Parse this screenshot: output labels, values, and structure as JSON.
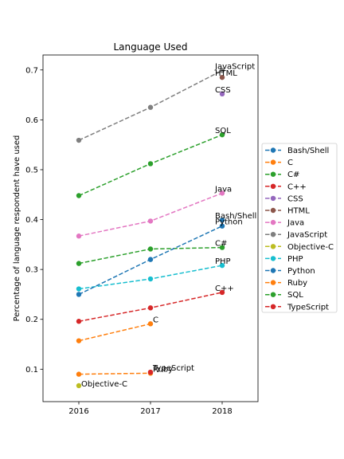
{
  "chart_data": {
    "type": "line",
    "title": "Language Used",
    "xlabel": "",
    "ylabel": "Percentage of language respondent have used",
    "x": [
      "2016",
      "2017",
      "2018"
    ],
    "xlim": [
      2015.5,
      2018.5
    ],
    "ylim": [
      0.035,
      0.73
    ],
    "yticks": [
      0.1,
      0.2,
      0.3,
      0.4,
      0.5,
      0.6,
      0.7
    ],
    "ytick_labels": [
      "0.1",
      "0.2",
      "0.3",
      "0.4",
      "0.5",
      "0.6",
      "0.7"
    ],
    "grid": false,
    "legend_position": "center right, outside axes",
    "line_style": "dashed",
    "series": [
      {
        "name": "Bash/Shell",
        "color": "#1f77b4",
        "values": [
          null,
          null,
          0.399
        ]
      },
      {
        "name": "C",
        "color": "#ff7f0e",
        "values": [
          0.157,
          0.191,
          null
        ]
      },
      {
        "name": "C#",
        "color": "#2ca02c",
        "values": [
          0.312,
          0.341,
          0.344
        ]
      },
      {
        "name": "C++",
        "color": "#d62728",
        "values": [
          0.196,
          0.223,
          0.254
        ]
      },
      {
        "name": "CSS",
        "color": "#9467bd",
        "values": [
          null,
          null,
          0.652
        ]
      },
      {
        "name": "HTML",
        "color": "#8c564b",
        "values": [
          null,
          null,
          0.685
        ]
      },
      {
        "name": "Java",
        "color": "#e377c2",
        "values": [
          0.367,
          0.397,
          0.453
        ]
      },
      {
        "name": "JavaScript",
        "color": "#7f7f7f",
        "values": [
          0.559,
          0.625,
          0.699
        ]
      },
      {
        "name": "Objective-C",
        "color": "#bcbd22",
        "values": [
          0.067,
          null,
          null
        ]
      },
      {
        "name": "PHP",
        "color": "#17becf",
        "values": [
          0.261,
          0.281,
          0.308
        ]
      },
      {
        "name": "Python",
        "color": "#1f77b4",
        "values": [
          0.25,
          0.32,
          0.387
        ]
      },
      {
        "name": "Ruby",
        "color": "#ff7f0e",
        "values": [
          0.09,
          0.092,
          null
        ]
      },
      {
        "name": "SQL",
        "color": "#2ca02c",
        "values": [
          0.448,
          0.512,
          0.57
        ]
      },
      {
        "name": "TypeScript",
        "color": "#d62728",
        "values": [
          null,
          0.094,
          null
        ]
      }
    ],
    "annotations": [
      {
        "text": "JavaScript",
        "series": "JavaScript",
        "x": "2018"
      },
      {
        "text": "HTML",
        "series": "HTML",
        "x": "2018"
      },
      {
        "text": "CSS",
        "series": "CSS",
        "x": "2018"
      },
      {
        "text": "SQL",
        "series": "SQL",
        "x": "2018"
      },
      {
        "text": "Java",
        "series": "Java",
        "x": "2018"
      },
      {
        "text": "Bash/Shell",
        "series": "Bash/Shell",
        "x": "2018"
      },
      {
        "text": "Python",
        "series": "Python",
        "x": "2018"
      },
      {
        "text": "C#",
        "series": "C#",
        "x": "2018"
      },
      {
        "text": "PHP",
        "series": "PHP",
        "x": "2018"
      },
      {
        "text": "C++",
        "series": "C++",
        "x": "2018"
      },
      {
        "text": "C",
        "series": "C",
        "x": "2017"
      },
      {
        "text": "TypeScript",
        "series": "TypeScript",
        "x": "2017"
      },
      {
        "text": "Ruby",
        "series": "Ruby",
        "x": "2017"
      },
      {
        "text": "Objective-C",
        "series": "Objective-C",
        "x": "2016"
      }
    ]
  }
}
